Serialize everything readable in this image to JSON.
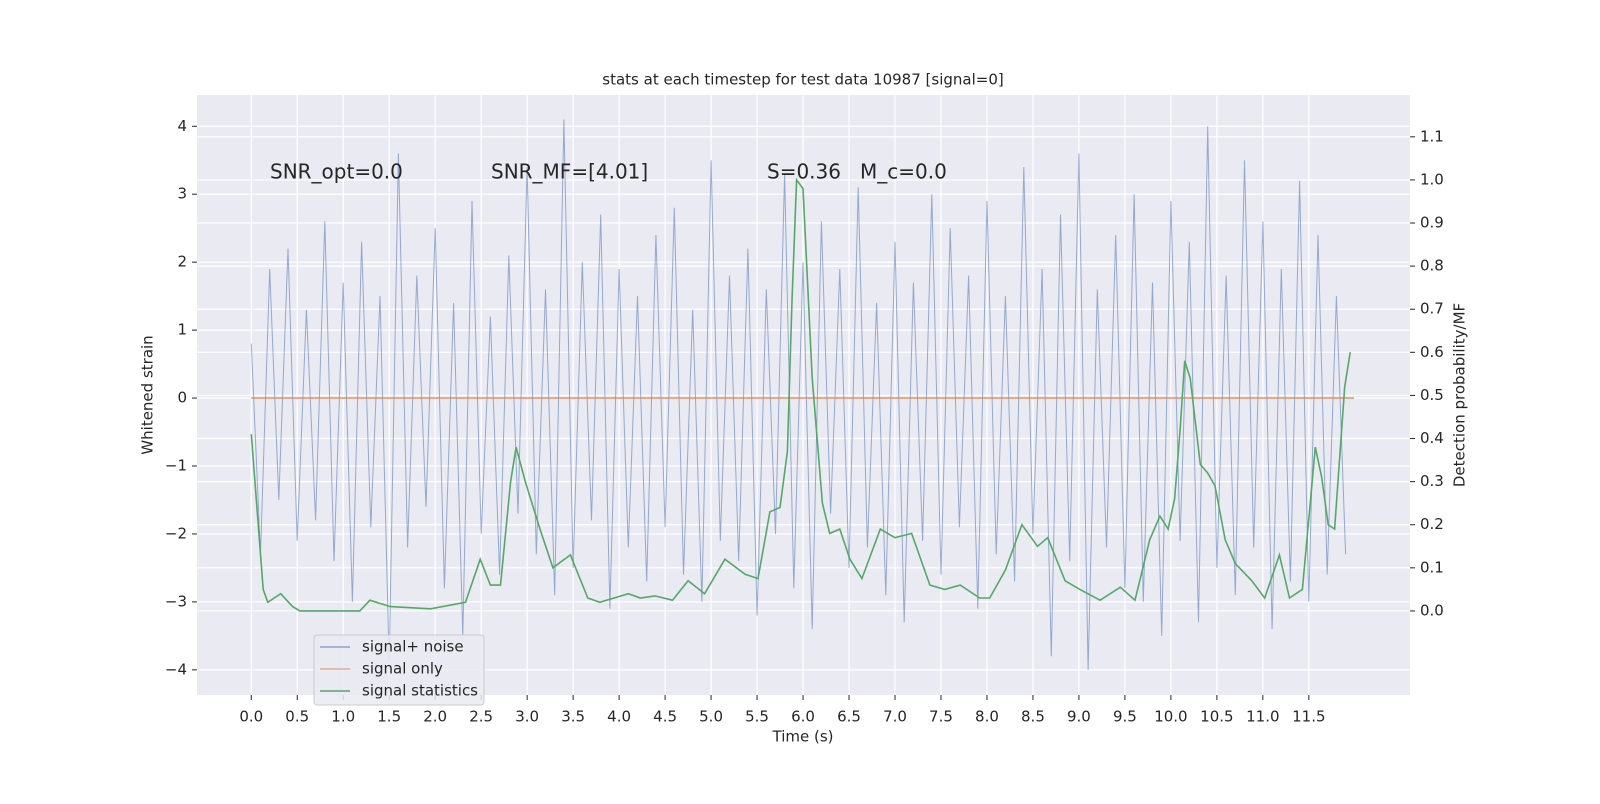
{
  "chart_data": {
    "type": "line",
    "title": "stats at each timestep for test data 10987 [signal=0]",
    "x_label": "Time (s)",
    "y_label": "Whitened strain",
    "y2_label": "Detection probability/MF",
    "annotations": [
      "SNR_opt=0.0",
      "SNR_MF=[4.01]",
      "S=0.36",
      "M_c=0.0"
    ],
    "xlim": [
      -0.59,
      12.6
    ],
    "ylim": [
      -4.37,
      4.46
    ],
    "y2lim": [
      -0.195,
      1.197
    ],
    "xticks": [
      {
        "value": 0,
        "label": "0.0"
      },
      0.5,
      {
        "value": 1,
        "label": "1.0"
      },
      1.5,
      {
        "value": 2,
        "label": "2.0"
      },
      2.5,
      {
        "value": 3,
        "label": "3.0"
      },
      3.5,
      {
        "value": 4,
        "label": "4.0"
      },
      4.5,
      {
        "value": 5,
        "label": "5.0"
      },
      5.5,
      {
        "value": 6,
        "label": "6.0"
      },
      6.5,
      {
        "value": 7,
        "label": "7.0"
      },
      7.5,
      {
        "value": 8,
        "label": "8.0"
      },
      8.5,
      {
        "value": 9,
        "label": "9.0"
      },
      9.5,
      {
        "value": 10,
        "label": "10.0"
      },
      10.5,
      {
        "value": 11,
        "label": "11.0"
      },
      11.5
    ],
    "yticks": [
      {
        "value": -4,
        "label": "−4"
      },
      {
        "value": -3,
        "label": "−3"
      },
      {
        "value": -2,
        "label": "−2"
      },
      {
        "value": -1,
        "label": "−1"
      },
      0,
      1,
      2,
      3,
      4
    ],
    "y2ticks": [
      {
        "value": 0,
        "label": "0.0"
      },
      0.1,
      0.2,
      0.3,
      0.4,
      0.5,
      0.6,
      0.7,
      0.8,
      0.9,
      {
        "value": 1,
        "label": "1.0"
      },
      1.1
    ],
    "grid": true,
    "legend": "lower left",
    "series": [
      {
        "name": "signal+ noise",
        "color": "#4c72b0",
        "x": [
          0,
          0.1,
          0.2,
          0.3,
          0.4,
          0.5,
          0.6,
          0.7,
          0.8,
          0.9,
          1,
          1.1,
          1.2,
          1.3,
          1.4,
          1.5,
          1.6,
          1.7,
          1.8,
          1.9,
          2,
          2.1,
          2.2,
          2.3,
          2.4,
          2.5,
          2.6,
          2.7,
          2.8,
          2.9,
          3,
          3.1,
          3.2,
          3.3,
          3.4,
          3.5,
          3.6,
          3.7,
          3.8,
          3.9,
          4,
          4.1,
          4.2,
          4.3,
          4.4,
          4.5,
          4.6,
          4.7,
          4.8,
          4.9,
          5,
          5.1,
          5.2,
          5.3,
          5.4,
          5.5,
          5.6,
          5.7,
          5.8,
          5.9,
          6,
          6.1,
          6.2,
          6.3,
          6.4,
          6.5,
          6.6,
          6.7,
          6.8,
          6.9,
          7,
          7.1,
          7.2,
          7.3,
          7.4,
          7.5,
          7.6,
          7.7,
          7.8,
          7.9,
          8,
          8.1,
          8.2,
          8.3,
          8.4,
          8.5,
          8.6,
          8.7,
          8.8,
          8.9,
          9,
          9.1,
          9.2,
          9.3,
          9.4,
          9.5,
          9.6,
          9.7,
          9.8,
          9.9,
          10,
          10.1,
          10.2,
          10.3,
          10.4,
          10.5,
          10.6,
          10.7,
          10.8,
          10.9,
          11,
          11.1,
          11.2,
          11.3,
          11.4,
          11.5,
          11.6,
          11.7,
          11.8,
          11.9
        ],
        "values": [
          0.8,
          -2.3,
          1.9,
          -1.5,
          2.2,
          -2.1,
          1.3,
          -1.8,
          2.6,
          -2.4,
          1.7,
          -3.0,
          2.3,
          -1.9,
          1.5,
          -3.9,
          3.6,
          -2.2,
          1.8,
          -1.6,
          2.5,
          -2.8,
          1.4,
          -3.5,
          2.9,
          -2.0,
          1.2,
          -2.6,
          2.1,
          -1.7,
          3.4,
          -2.3,
          1.6,
          -2.9,
          4.1,
          -2.5,
          2.0,
          -1.8,
          2.7,
          -3.1,
          1.9,
          -2.2,
          1.5,
          -2.7,
          2.4,
          -1.9,
          2.8,
          -2.6,
          1.3,
          -3.0,
          3.5,
          -2.1,
          1.8,
          -2.4,
          2.2,
          -3.2,
          1.6,
          -2.0,
          3.3,
          -2.8,
          2.0,
          -3.4,
          2.6,
          -1.7,
          1.9,
          -2.5,
          3.1,
          -2.2,
          1.4,
          -2.9,
          2.3,
          -3.3,
          1.7,
          -2.1,
          3.0,
          -2.6,
          2.5,
          -1.9,
          1.8,
          -3.1,
          2.9,
          -2.3,
          1.5,
          -2.7,
          3.4,
          -2.0,
          1.9,
          -3.8,
          2.7,
          -2.4,
          3.6,
          -4.0,
          1.6,
          -2.2,
          2.4,
          -2.8,
          3.0,
          -3.0,
          1.7,
          -3.5,
          2.9,
          -2.1,
          2.3,
          -3.3,
          4.0,
          -2.5,
          1.8,
          -2.9,
          3.5,
          -2.2,
          2.6,
          -3.4,
          1.9,
          -2.7,
          3.2,
          -3.0,
          2.4,
          -2.6,
          1.5,
          -2.3
        ]
      },
      {
        "name": "signal only",
        "color": "#dd8452",
        "x": [
          0,
          11.99
        ],
        "values": [
          0,
          0
        ]
      },
      {
        "name": "signal statistics",
        "color": "#55a868",
        "axis": "y2",
        "x": [
          0,
          0.13,
          0.18,
          0.32,
          0.45,
          0.53,
          0.86,
          1.18,
          1.29,
          1.51,
          1.95,
          2.33,
          2.49,
          2.6,
          2.71,
          2.82,
          2.88,
          2.98,
          3.14,
          3.28,
          3.47,
          3.66,
          3.79,
          4.1,
          4.23,
          4.39,
          4.58,
          4.75,
          4.93,
          5.15,
          5.37,
          5.51,
          5.64,
          5.75,
          5.83,
          5.88,
          5.93,
          6.0,
          6.1,
          6.21,
          6.29,
          6.4,
          6.51,
          6.64,
          6.84,
          7.0,
          7.18,
          7.38,
          7.54,
          7.71,
          7.92,
          8.03,
          8.2,
          8.38,
          8.55,
          8.66,
          8.85,
          9.01,
          9.23,
          9.45,
          9.61,
          9.77,
          9.88,
          9.97,
          10.04,
          10.1,
          10.15,
          10.21,
          10.32,
          10.4,
          10.48,
          10.59,
          10.7,
          10.88,
          11.02,
          11.18,
          11.29,
          11.43,
          11.57,
          11.64,
          11.71,
          11.78,
          11.89,
          11.95
        ],
        "values": [
          0.41,
          0.05,
          0.02,
          0.04,
          0.01,
          0.0,
          0.0,
          0.0,
          0.025,
          0.01,
          0.005,
          0.02,
          0.12,
          0.06,
          0.06,
          0.3,
          0.38,
          0.3,
          0.19,
          0.1,
          0.13,
          0.03,
          0.02,
          0.04,
          0.03,
          0.035,
          0.025,
          0.07,
          0.04,
          0.12,
          0.085,
          0.075,
          0.23,
          0.24,
          0.37,
          0.72,
          1.0,
          0.98,
          0.54,
          0.25,
          0.18,
          0.19,
          0.12,
          0.075,
          0.19,
          0.17,
          0.18,
          0.06,
          0.05,
          0.06,
          0.03,
          0.03,
          0.095,
          0.2,
          0.15,
          0.17,
          0.07,
          0.05,
          0.025,
          0.055,
          0.025,
          0.165,
          0.22,
          0.19,
          0.26,
          0.42,
          0.58,
          0.54,
          0.34,
          0.32,
          0.29,
          0.165,
          0.11,
          0.07,
          0.03,
          0.13,
          0.03,
          0.05,
          0.38,
          0.31,
          0.2,
          0.19,
          0.52,
          0.6
        ]
      }
    ]
  }
}
